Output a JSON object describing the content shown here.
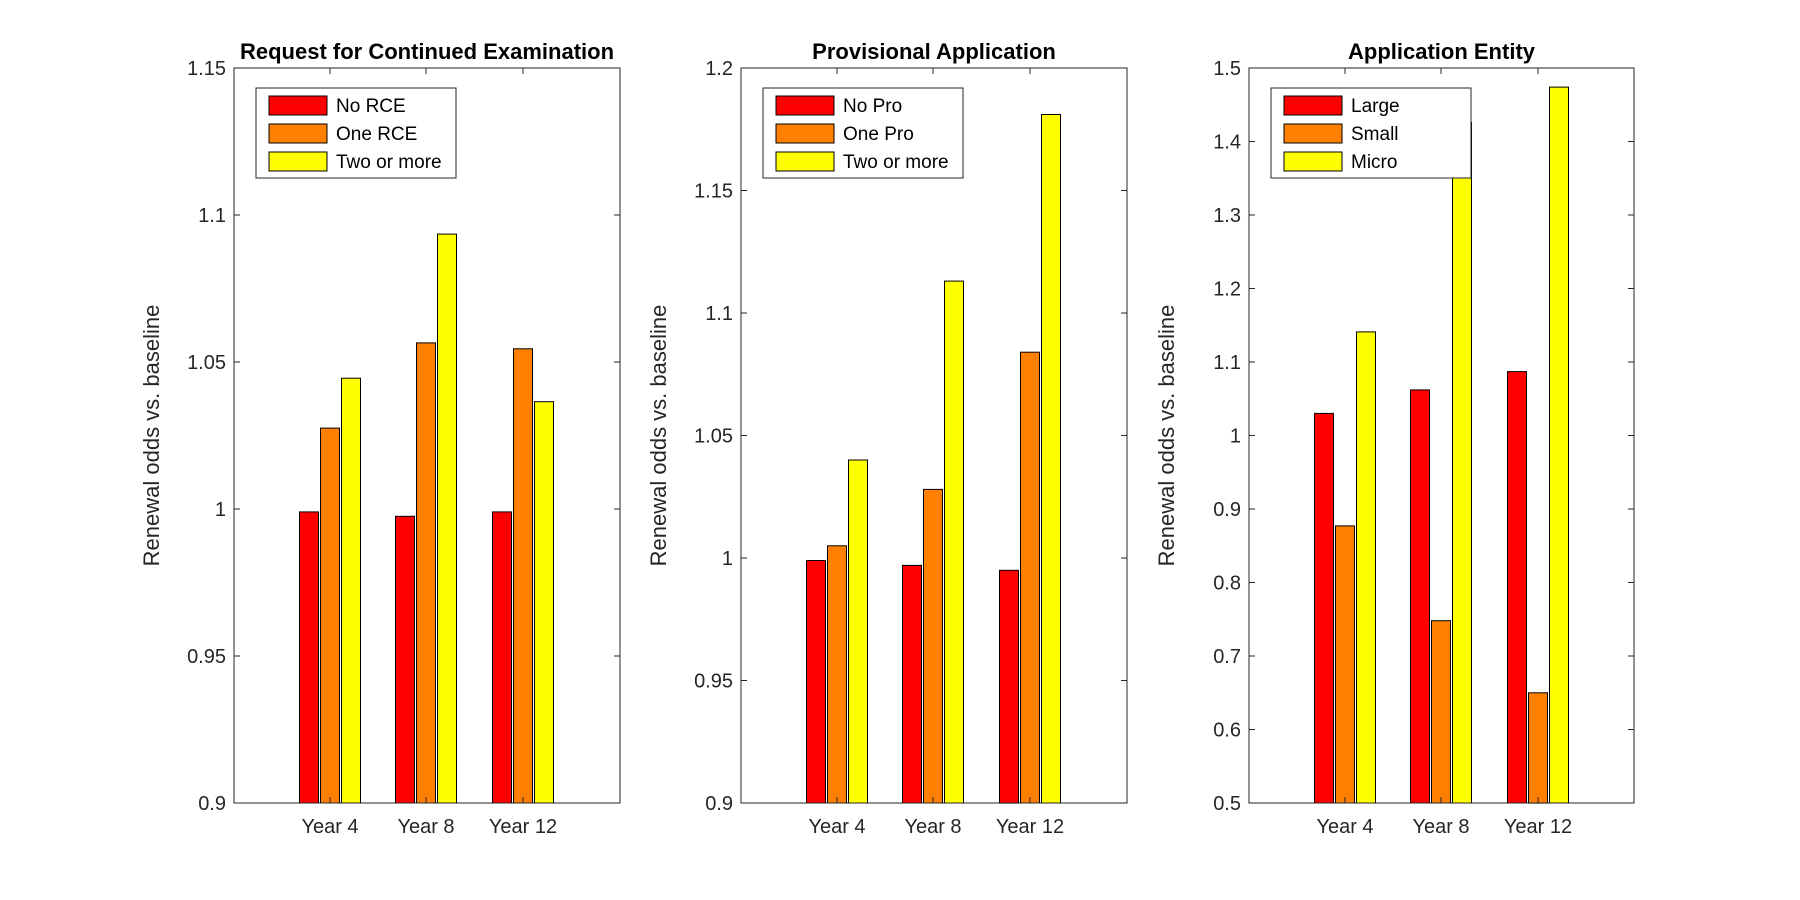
{
  "colors": {
    "c1": "#ff0000",
    "c2": "#ff7f00",
    "c3": "#ffff00",
    "axis": "#262626"
  },
  "chart_data": [
    {
      "type": "bar",
      "title": "Request for Continued Examination",
      "ylabel": "Renewal odds vs. baseline",
      "xlabel": "",
      "categories": [
        "Year 4",
        "Year 8",
        "Year 12"
      ],
      "ylim": [
        0.9,
        1.15
      ],
      "yticks": [
        0.9,
        0.95,
        1,
        1.05,
        1.1,
        1.15
      ],
      "ytick_labels": [
        "0.9",
        "0.95",
        "1",
        "1.05",
        "1.1",
        "1.15"
      ],
      "legend_position": "top-left",
      "series": [
        {
          "name": "No RCE",
          "values": [
            0.999,
            0.9975,
            0.999
          ]
        },
        {
          "name": "One RCE",
          "values": [
            1.0275,
            1.0565,
            1.0545
          ]
        },
        {
          "name": "Two or more",
          "values": [
            1.0445,
            1.0935,
            1.0365
          ]
        }
      ]
    },
    {
      "type": "bar",
      "title": "Provisional Application",
      "ylabel": "Renewal odds vs. baseline",
      "xlabel": "",
      "categories": [
        "Year 4",
        "Year 8",
        "Year 12"
      ],
      "ylim": [
        0.9,
        1.2
      ],
      "yticks": [
        0.9,
        0.95,
        1,
        1.05,
        1.1,
        1.15,
        1.2
      ],
      "ytick_labels": [
        "0.9",
        "0.95",
        "1",
        "1.05",
        "1.1",
        "1.15",
        "1.2"
      ],
      "legend_position": "top-left",
      "series": [
        {
          "name": "No Pro",
          "values": [
            0.999,
            0.997,
            0.995
          ]
        },
        {
          "name": "One Pro",
          "values": [
            1.005,
            1.028,
            1.084
          ]
        },
        {
          "name": "Two or more",
          "values": [
            1.04,
            1.113,
            1.181
          ]
        }
      ]
    },
    {
      "type": "bar",
      "title": "Application Entity",
      "ylabel": "Renewal odds vs. baseline",
      "xlabel": "",
      "categories": [
        "Year 4",
        "Year 8",
        "Year 12"
      ],
      "ylim": [
        0.5,
        1.5
      ],
      "yticks": [
        0.5,
        0.6,
        0.7,
        0.8,
        0.9,
        1,
        1.1,
        1.2,
        1.3,
        1.4,
        1.5
      ],
      "ytick_labels": [
        "0.5",
        "0.6",
        "0.7",
        "0.8",
        "0.9",
        "1",
        "1.1",
        "1.2",
        "1.3",
        "1.4",
        "1.5"
      ],
      "legend_position": "top-left",
      "series": [
        {
          "name": "Large",
          "values": [
            1.03,
            1.062,
            1.087
          ]
        },
        {
          "name": "Small",
          "values": [
            0.877,
            0.748,
            0.65
          ]
        },
        {
          "name": "Micro",
          "values": [
            1.141,
            1.426,
            1.474
          ]
        }
      ]
    }
  ]
}
